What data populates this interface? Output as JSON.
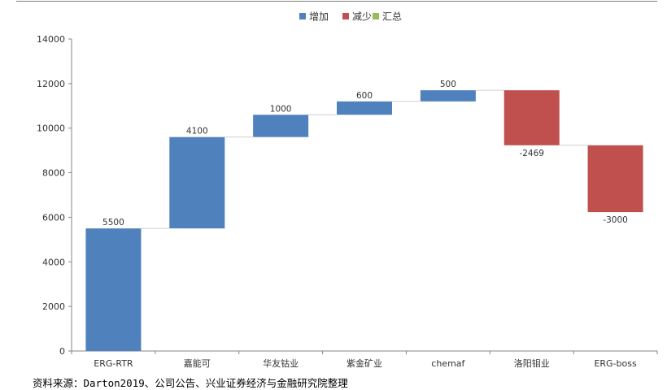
{
  "chart_data": {
    "type": "bar",
    "subtype": "waterfall",
    "categories": [
      "ERG-RTR",
      "嘉能可",
      "华友钴业",
      "紫金矿业",
      "chemaf",
      "洛阳钼业",
      "ERG-boss"
    ],
    "values": [
      5500,
      4100,
      1000,
      600,
      500,
      -2469,
      -3000
    ],
    "data_labels": [
      "5500",
      "4100",
      "1000",
      "600",
      "500",
      "-2469",
      "-3000"
    ],
    "ylim": [
      0,
      14000
    ],
    "yticks": [
      0,
      2000,
      4000,
      6000,
      8000,
      10000,
      12000,
      14000
    ],
    "legend": [
      {
        "name": "增加",
        "color": "#4f81bd"
      },
      {
        "name": "减少",
        "color": "#c0504d"
      },
      {
        "name": "汇总",
        "color": "#9bbb59"
      }
    ],
    "legend_position": "top-center",
    "grid": false
  },
  "source_note": "资料来源：Darton2019、公司公告、兴业证券经济与金融研究院整理"
}
